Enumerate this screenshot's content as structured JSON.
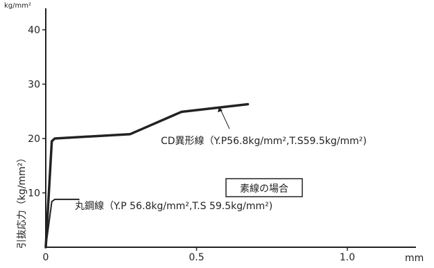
{
  "chart_data": {
    "type": "line",
    "y_unit": "kg/mm²",
    "x_unit": "mm",
    "ylabel": "引抜応力（kg/mm²）",
    "xlim": [
      0,
      1.25
    ],
    "ylim": [
      0,
      44
    ],
    "x_ticks": [
      0,
      0.5,
      1.0
    ],
    "x_tick_labels": [
      "0",
      "0.5",
      "1.0"
    ],
    "y_ticks": [
      10,
      20,
      30,
      40
    ],
    "y_tick_labels": [
      "10",
      "20",
      "30",
      "40"
    ],
    "grid": false,
    "legend_box_label": "素線の場合",
    "series": [
      {
        "name": "CD異形線（Y.P56.8kg/mm²,T.S59.5kg/mm²)",
        "color": "#222222",
        "x": [
          0.0,
          0.02,
          0.03,
          0.28,
          0.45,
          0.67
        ],
        "y": [
          0.0,
          19.5,
          20.0,
          20.8,
          24.9,
          26.3
        ]
      },
      {
        "name": "丸鋼線（Y.P 56.8kg/mm²,T.S 59.5kg/mm²)",
        "color": "#222222",
        "x": [
          0.0,
          0.02,
          0.03,
          0.11
        ],
        "y": [
          0.0,
          8.4,
          8.8,
          8.8
        ]
      }
    ]
  }
}
